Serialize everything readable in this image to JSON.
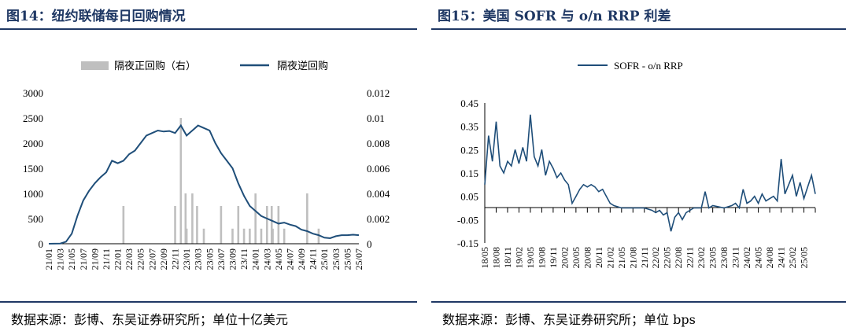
{
  "left_panel": {
    "title": "图14：纽约联储每日回购情况",
    "source": "数据来源：彭博、东吴证券研究所；单位十亿美元"
  },
  "right_panel": {
    "title": "图15：美国 SOFR 与 o/n RRP 利差",
    "source": "数据来源：彭博、东吴证券研究所；单位 bps"
  },
  "colors": {
    "title": "#1F3864",
    "line": "#1F4E79",
    "bar": "#BFBFBF"
  },
  "chart_data": [
    {
      "type": "bar+line",
      "legend": [
        "隔夜正回购（右）",
        "隔夜逆回购"
      ],
      "legend_position": "top-center",
      "grid": false,
      "x_tick_labels": [
        "21/01",
        "21/03",
        "21/05",
        "21/07",
        "21/09",
        "21/11",
        "22/01",
        "22/03",
        "22/05",
        "22/07",
        "22/09",
        "22/11",
        "23/01",
        "23/03",
        "23/05",
        "23/07",
        "23/09",
        "23/11",
        "24/01",
        "24/03",
        "24/05",
        "24/07",
        "24/09",
        "24/11",
        "25/01",
        "25/03",
        "25/05",
        "25/07"
      ],
      "ylim_left": [
        0,
        3000
      ],
      "yticks_left": [
        "3000",
        "2500",
        "2000",
        "1500",
        "1000",
        "500",
        "0"
      ],
      "ylim_right": [
        0,
        0.012
      ],
      "yticks_right": [
        "0.012",
        "0.01",
        "0.008",
        "0.006",
        "0.004",
        "0.002",
        "0"
      ],
      "series": [
        {
          "name": "隔夜逆回购",
          "kind": "line",
          "axis": "left",
          "points": [
            [
              "21/01",
              0
            ],
            [
              "21/03",
              5
            ],
            [
              "21/04",
              40
            ],
            [
              "21/05",
              200
            ],
            [
              "21/06",
              560
            ],
            [
              "21/07",
              860
            ],
            [
              "21/08",
              1050
            ],
            [
              "21/09",
              1200
            ],
            [
              "21/10",
              1320
            ],
            [
              "21/11",
              1420
            ],
            [
              "21/12",
              1650
            ],
            [
              "22/01",
              1600
            ],
            [
              "22/02",
              1650
            ],
            [
              "22/03",
              1780
            ],
            [
              "22/04",
              1850
            ],
            [
              "22/05",
              2000
            ],
            [
              "22/06",
              2150
            ],
            [
              "22/07",
              2200
            ],
            [
              "22/08",
              2250
            ],
            [
              "22/09",
              2230
            ],
            [
              "22/10",
              2240
            ],
            [
              "22/11",
              2200
            ],
            [
              "22/12",
              2350
            ],
            [
              "23/01",
              2150
            ],
            [
              "23/02",
              2250
            ],
            [
              "23/03",
              2350
            ],
            [
              "23/04",
              2300
            ],
            [
              "23/05",
              2250
            ],
            [
              "23/06",
              2000
            ],
            [
              "23/07",
              1800
            ],
            [
              "23/08",
              1650
            ],
            [
              "23/09",
              1500
            ],
            [
              "23/10",
              1200
            ],
            [
              "23/11",
              950
            ],
            [
              "23/12",
              750
            ],
            [
              "24/01",
              650
            ],
            [
              "24/02",
              550
            ],
            [
              "24/03",
              500
            ],
            [
              "24/04",
              450
            ],
            [
              "24/05",
              400
            ],
            [
              "24/06",
              420
            ],
            [
              "24/07",
              380
            ],
            [
              "24/08",
              350
            ],
            [
              "24/09",
              280
            ],
            [
              "24/10",
              250
            ],
            [
              "24/11",
              200
            ],
            [
              "24/12",
              170
            ],
            [
              "25/01",
              120
            ],
            [
              "25/02",
              110
            ],
            [
              "25/03",
              150
            ],
            [
              "25/04",
              170
            ],
            [
              "25/05",
              170
            ],
            [
              "25/06",
              180
            ],
            [
              "25/07",
              170
            ]
          ]
        },
        {
          "name": "隔夜正回购（右）",
          "kind": "bar",
          "axis": "right",
          "points": [
            [
              "22/02",
              0.003
            ],
            [
              "22/11",
              0.003
            ],
            [
              "22/12",
              0.01
            ],
            [
              "22/12",
              0.004
            ],
            [
              "23/01",
              0.0012
            ],
            [
              "23/02",
              0.004
            ],
            [
              "23/02",
              0.003
            ],
            [
              "23/04",
              0.0012
            ],
            [
              "23/07",
              0.003
            ],
            [
              "23/09",
              0.0012
            ],
            [
              "23/10",
              0.003
            ],
            [
              "23/11",
              0.0012
            ],
            [
              "23/12",
              0.0012
            ],
            [
              "24/01",
              0.004
            ],
            [
              "24/02",
              0.0012
            ],
            [
              "24/03",
              0.003
            ],
            [
              "24/03",
              0.003
            ],
            [
              "24/04",
              0.0012
            ],
            [
              "24/05",
              0.003
            ],
            [
              "24/06",
              0.0012
            ],
            [
              "24/10",
              0.004
            ],
            [
              "24/12",
              0.0012
            ]
          ]
        }
      ]
    },
    {
      "type": "line",
      "legend": [
        "SOFR - o/n RRP"
      ],
      "legend_position": "top-center",
      "grid": false,
      "x_tick_labels": [
        "18/05",
        "18/08",
        "18/11",
        "19/02",
        "19/05",
        "19/08",
        "19/11",
        "20/02",
        "20/05",
        "20/08",
        "20/11",
        "21/02",
        "21/05",
        "21/08",
        "21/11",
        "22/02",
        "22/05",
        "22/08",
        "22/11",
        "23/02",
        "23/05",
        "23/08",
        "23/11",
        "24/02",
        "24/05",
        "24/08",
        "24/11",
        "25/02",
        "25/05"
      ],
      "ylim": [
        -0.15,
        0.45
      ],
      "yticks": [
        "0.45",
        "0.35",
        "0.25",
        "0.15",
        "0.05",
        "-0.05",
        "-0.15"
      ],
      "series": [
        {
          "name": "SOFR - o/n RRP",
          "points": [
            [
              "18/05",
              0.1
            ],
            [
              "18/06",
              0.31
            ],
            [
              "18/07",
              0.2
            ],
            [
              "18/08",
              0.37
            ],
            [
              "18/09",
              0.18
            ],
            [
              "18/10",
              0.15
            ],
            [
              "18/11",
              0.2
            ],
            [
              "18/12",
              0.18
            ],
            [
              "19/01",
              0.25
            ],
            [
              "19/02",
              0.19
            ],
            [
              "19/03",
              0.26
            ],
            [
              "19/04",
              0.2
            ],
            [
              "19/05",
              0.4
            ],
            [
              "19/06",
              0.22
            ],
            [
              "19/07",
              0.18
            ],
            [
              "19/08",
              0.25
            ],
            [
              "19/09",
              0.14
            ],
            [
              "19/10",
              0.2
            ],
            [
              "19/11",
              0.17
            ],
            [
              "19/12",
              0.13
            ],
            [
              "20/01",
              0.15
            ],
            [
              "20/02",
              0.12
            ],
            [
              "20/03",
              0.1
            ],
            [
              "20/04",
              0.02
            ],
            [
              "20/05",
              0.05
            ],
            [
              "20/06",
              0.08
            ],
            [
              "20/07",
              0.1
            ],
            [
              "20/08",
              0.09
            ],
            [
              "20/09",
              0.1
            ],
            [
              "20/10",
              0.09
            ],
            [
              "20/11",
              0.07
            ],
            [
              "20/12",
              0.08
            ],
            [
              "21/01",
              0.05
            ],
            [
              "21/02",
              0.02
            ],
            [
              "21/03",
              0.01
            ],
            [
              "21/05",
              0.0
            ],
            [
              "21/08",
              0.0
            ],
            [
              "21/11",
              0.0
            ],
            [
              "22/01",
              -0.01
            ],
            [
              "22/02",
              -0.02
            ],
            [
              "22/03",
              -0.01
            ],
            [
              "22/04",
              -0.03
            ],
            [
              "22/05",
              -0.02
            ],
            [
              "22/06",
              -0.1
            ],
            [
              "22/07",
              -0.04
            ],
            [
              "22/08",
              -0.02
            ],
            [
              "22/09",
              -0.05
            ],
            [
              "22/10",
              -0.02
            ],
            [
              "22/11",
              -0.01
            ],
            [
              "22/12",
              0.0
            ],
            [
              "23/02",
              0.0
            ],
            [
              "23/03",
              0.07
            ],
            [
              "23/04",
              0.0
            ],
            [
              "23/05",
              0.01
            ],
            [
              "23/08",
              0.0
            ],
            [
              "23/10",
              0.01
            ],
            [
              "23/11",
              0.02
            ],
            [
              "23/12",
              0.0
            ],
            [
              "24/01",
              0.08
            ],
            [
              "24/02",
              0.02
            ],
            [
              "24/03",
              0.03
            ],
            [
              "24/04",
              0.05
            ],
            [
              "24/05",
              0.02
            ],
            [
              "24/06",
              0.06
            ],
            [
              "24/07",
              0.03
            ],
            [
              "24/08",
              0.04
            ],
            [
              "24/09",
              0.05
            ],
            [
              "24/10",
              0.03
            ],
            [
              "24/11",
              0.21
            ],
            [
              "24/12",
              0.06
            ],
            [
              "25/01",
              0.1
            ],
            [
              "25/02",
              0.14
            ],
            [
              "25/03",
              0.05
            ],
            [
              "25/04",
              0.11
            ],
            [
              "25/05",
              0.04
            ],
            [
              "25/06",
              0.09
            ],
            [
              "25/07",
              0.14
            ],
            [
              "25/08",
              0.06
            ]
          ]
        }
      ]
    }
  ]
}
